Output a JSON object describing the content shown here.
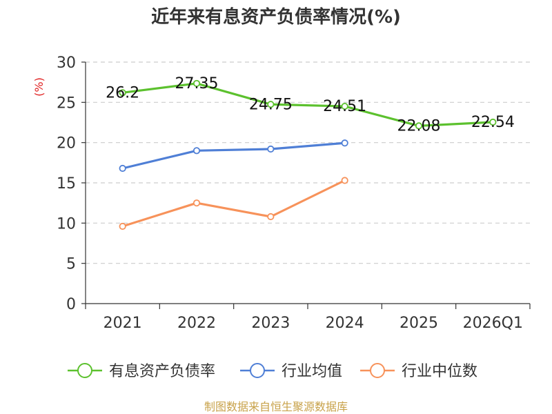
{
  "chart_data": {
    "type": "line",
    "title": "近年来有息资产负债率情况(%)",
    "ylabel": "(%)",
    "xlabel": "",
    "categories": [
      "2021",
      "2022",
      "2023",
      "2024",
      "2025",
      "2026Q1"
    ],
    "ylim": [
      0,
      30
    ],
    "yticks": [
      0,
      5,
      10,
      15,
      20,
      25,
      30
    ],
    "grid": true,
    "legend_position": "bottom",
    "series": [
      {
        "name": "有息资产负债率",
        "color": "#5cc12e",
        "values": [
          26.2,
          27.35,
          24.75,
          24.51,
          22.08,
          22.54
        ],
        "labels": [
          "26.2",
          "27.35",
          "24.75",
          "24.51",
          "22.08",
          "22.54"
        ]
      },
      {
        "name": "行业均值",
        "color": "#4f7fd6",
        "values": [
          16.8,
          19.0,
          19.2,
          19.95,
          null,
          null
        ],
        "labels": null
      },
      {
        "name": "行业中位数",
        "color": "#f7925a",
        "values": [
          9.6,
          12.5,
          10.8,
          15.3,
          null,
          null
        ],
        "labels": null
      }
    ]
  },
  "source": "制图数据来自恒生聚源数据库"
}
